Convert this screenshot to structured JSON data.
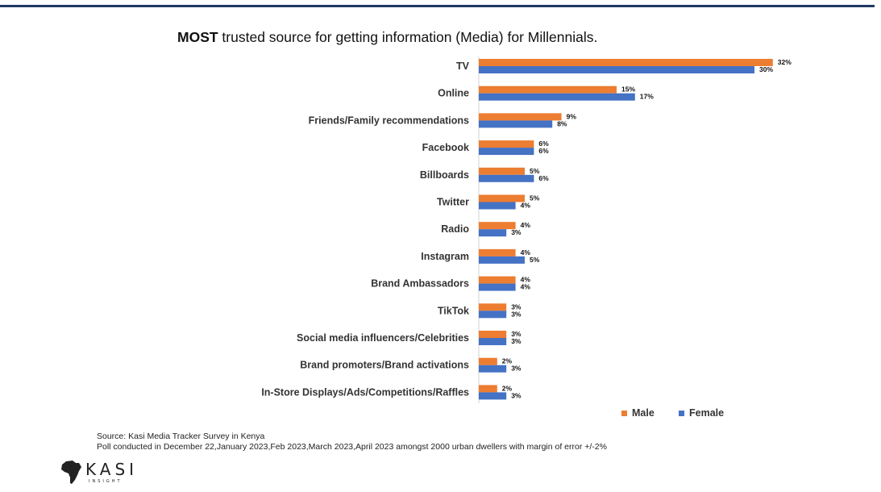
{
  "title": {
    "bold": "MOST",
    "rest": " trusted source for getting information (Media) for Millennials."
  },
  "chart_data": {
    "type": "bar",
    "orientation": "horizontal",
    "title": "MOST trusted source for getting information (Media) for Millennials.",
    "categories": [
      "TV",
      "Online",
      "Friends/Family recommendations",
      "Facebook",
      "Billboards",
      "Twitter",
      "Radio",
      "Instagram",
      "Brand Ambassadors",
      "TikTok",
      "Social media influencers/Celebrities",
      "Brand promoters/Brand activations",
      "In-Store Displays/Ads/Competitions/Raffles"
    ],
    "series": [
      {
        "name": "Male",
        "color": "#ed7d31",
        "values": [
          32,
          15,
          9,
          6,
          5,
          5,
          4,
          4,
          4,
          3,
          3,
          2,
          2
        ]
      },
      {
        "name": "Female",
        "color": "#4472c4",
        "values": [
          30,
          17,
          8,
          6,
          6,
          4,
          3,
          5,
          4,
          3,
          3,
          3,
          3
        ]
      }
    ],
    "value_suffix": "%",
    "xlim": [
      0,
      32
    ],
    "legend_position": "bottom-right"
  },
  "legend": {
    "male": "Male",
    "female": "Female"
  },
  "source": {
    "line1": "Source: Kasi Media Tracker Survey in Kenya",
    "line2": "Poll conducted in December 22,January 2023,Feb 2023,March 2023,April 2023 amongst 2000 urban dwellers with margin of error +/-2%"
  },
  "logo": {
    "text": "KASI",
    "sub": "INSIGHT"
  },
  "colors": {
    "rule": "#1f3864",
    "male": "#ed7d31",
    "female": "#4472c4"
  }
}
